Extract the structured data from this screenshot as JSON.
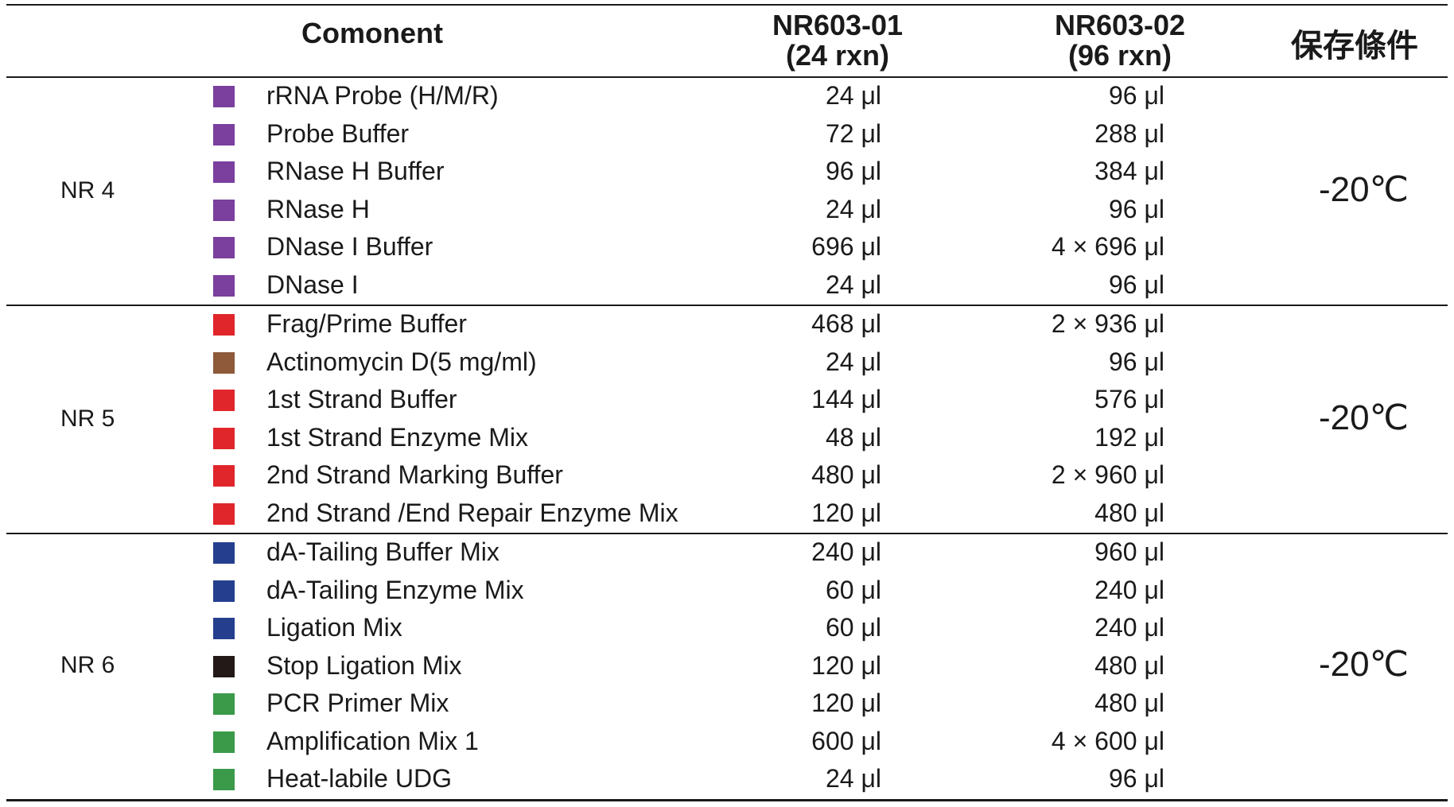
{
  "header": {
    "component": "Comonent",
    "col1_line1": "NR603-01",
    "col1_line2": "(24 rxn)",
    "col2_line1": "NR603-02",
    "col2_line2": "(96 rxn)",
    "storage": "保存條件"
  },
  "groups": [
    {
      "label": "NR 4",
      "temperature": "-20℃",
      "rows": [
        {
          "color": "#7b3f9e",
          "name": "rRNA Probe (H/M/R)",
          "v1": "24 μl",
          "v2": "96 μl"
        },
        {
          "color": "#7b3f9e",
          "name": "Probe Buffer",
          "v1": "72 μl",
          "v2": "288 μl"
        },
        {
          "color": "#7b3f9e",
          "name": "RNase H Buffer",
          "v1": "96 μl",
          "v2": "384 μl"
        },
        {
          "color": "#7b3f9e",
          "name": "RNase H",
          "v1": "24 μl",
          "v2": "96 μl"
        },
        {
          "color": "#7b3f9e",
          "name": "DNase I Buffer",
          "v1": "696 μl",
          "v2": "4 × 696 μl"
        },
        {
          "color": "#7b3f9e",
          "name": "DNase I",
          "v1": "24 μl",
          "v2": "96 μl"
        }
      ]
    },
    {
      "label": "NR 5",
      "temperature": "-20℃",
      "rows": [
        {
          "color": "#e0262b",
          "name": "Frag/Prime Buffer",
          "v1": "468 μl",
          "v2": "2 × 936 μl"
        },
        {
          "color": "#8e5a3a",
          "name": "Actinomycin D(5 mg/ml)",
          "v1": "24 μl",
          "v2": "96 μl"
        },
        {
          "color": "#e0262b",
          "name": "1st Strand Buffer",
          "v1": "144 μl",
          "v2": "576 μl"
        },
        {
          "color": "#e0262b",
          "name": "1st Strand Enzyme Mix",
          "v1": "48 μl",
          "v2": "192 μl"
        },
        {
          "color": "#e0262b",
          "name": "2nd Strand Marking Buffer",
          "v1": "480 μl",
          "v2": "2 × 960 μl"
        },
        {
          "color": "#e0262b",
          "name": "2nd Strand /End Repair Enzyme Mix",
          "v1": "120 μl",
          "v2": "480 μl"
        }
      ]
    },
    {
      "label": "NR 6",
      "temperature": "-20℃",
      "rows": [
        {
          "color": "#253f8e",
          "name": "dA-Tailing Buffer Mix",
          "v1": "240 μl",
          "v2": "960 μl"
        },
        {
          "color": "#253f8e",
          "name": "dA-Tailing Enzyme Mix",
          "v1": "60 μl",
          "v2": "240 μl"
        },
        {
          "color": "#253f8e",
          "name": "Ligation Mix",
          "v1": "60 μl",
          "v2": "240 μl"
        },
        {
          "color": "#231a17",
          "name": "Stop Ligation Mix",
          "v1": "120 μl",
          "v2": "480 μl"
        },
        {
          "color": "#3a9a4a",
          "name": "PCR Primer Mix",
          "v1": "120 μl",
          "v2": "480 μl"
        },
        {
          "color": "#3a9a4a",
          "name": "Amplification Mix 1",
          "v1": "600 μl",
          "v2": "4 × 600 μl"
        },
        {
          "color": "#3a9a4a",
          "name": "Heat-labile UDG",
          "v1": "24 μl",
          "v2": "96 μl"
        }
      ]
    }
  ]
}
